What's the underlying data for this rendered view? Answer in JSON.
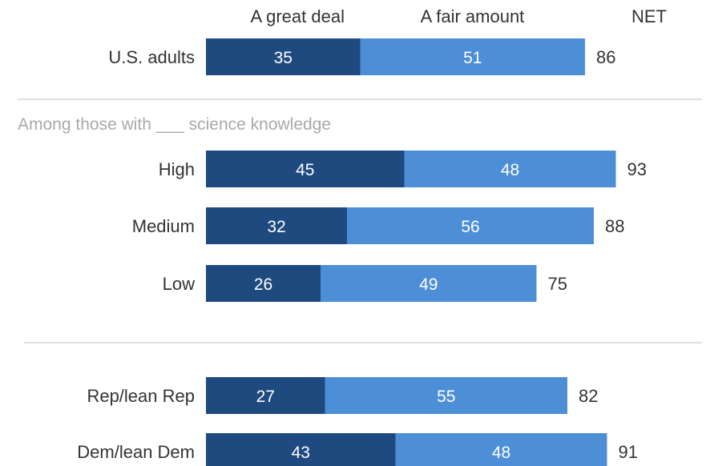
{
  "chart_data": {
    "type": "bar",
    "orientation": "horizontal",
    "stacked": true,
    "legend": [
      "A great deal",
      "A fair amount",
      "NET"
    ],
    "series": [
      {
        "name": "A great deal",
        "color": "#1f4a7f"
      },
      {
        "name": "A fair amount",
        "color": "#4d8fd6"
      }
    ],
    "net_label_color": "#333333",
    "section_label": "Among those with ___ science knowledge",
    "rows": [
      {
        "label": "U.S. adults",
        "values": [
          35,
          51
        ],
        "net": 86
      },
      {
        "label": "High",
        "values": [
          45,
          48
        ],
        "net": 93
      },
      {
        "label": "Medium",
        "values": [
          32,
          56
        ],
        "net": 88
      },
      {
        "label": "Low",
        "values": [
          26,
          49
        ],
        "net": 75
      },
      {
        "label": "Rep/lean Rep",
        "values": [
          27,
          55
        ],
        "net": 82
      },
      {
        "label": "Dem/lean Dem",
        "values": [
          43,
          48
        ],
        "net": 91
      }
    ],
    "xlim": [
      0,
      100
    ]
  }
}
